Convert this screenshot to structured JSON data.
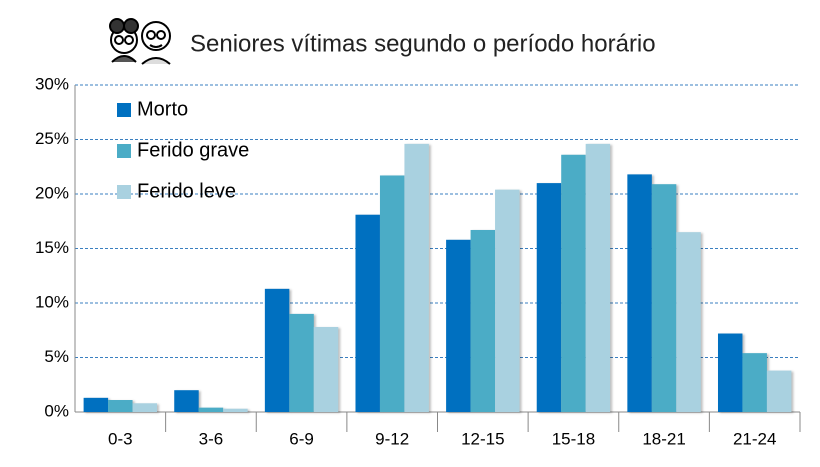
{
  "chart_data": {
    "type": "bar",
    "title": "Seniores vítimas segundo o período horário",
    "categories": [
      "0-3",
      "3-6",
      "6-9",
      "9-12",
      "12-15",
      "15-18",
      "18-21",
      "21-24"
    ],
    "series": [
      {
        "name": "Morto",
        "color": "#0070c0",
        "values": [
          1.3,
          2.0,
          11.3,
          18.1,
          15.8,
          21.0,
          21.8,
          7.2
        ]
      },
      {
        "name": "Ferido grave",
        "color": "#4bacc6",
        "values": [
          1.1,
          0.4,
          9.0,
          21.7,
          16.7,
          23.6,
          20.9,
          5.4
        ]
      },
      {
        "name": "Ferido leve",
        "color": "#a9d1e0",
        "values": [
          0.8,
          0.3,
          7.8,
          24.6,
          20.4,
          24.6,
          16.5,
          3.8
        ]
      }
    ],
    "ylim": [
      0,
      30
    ],
    "yticks": [
      {
        "value": 0,
        "label": "0%"
      },
      {
        "value": 5,
        "label": "5%"
      },
      {
        "value": 10,
        "label": "10%"
      },
      {
        "value": 15,
        "label": "15%"
      },
      {
        "value": 20,
        "label": "20%"
      },
      {
        "value": 25,
        "label": "25%"
      },
      {
        "value": 30,
        "label": "30%"
      }
    ],
    "grid": true,
    "legend": "top-left"
  }
}
